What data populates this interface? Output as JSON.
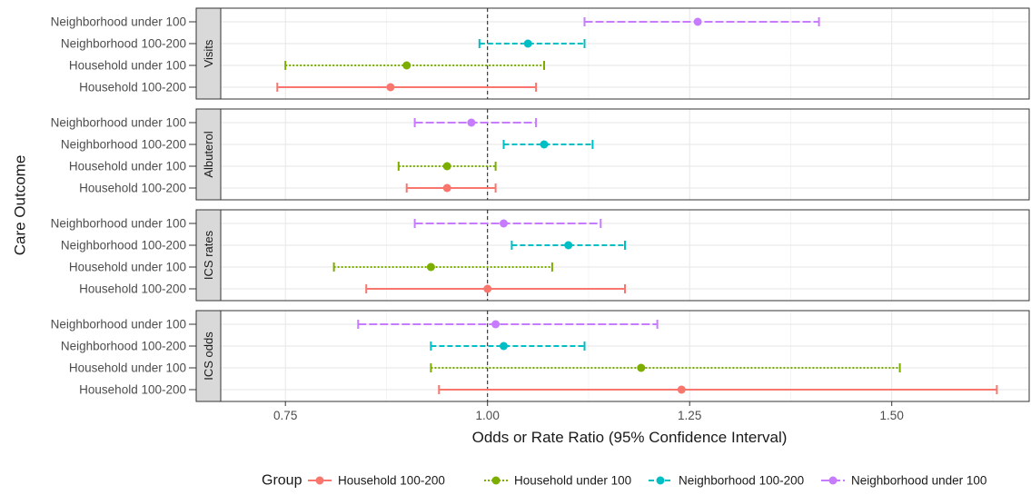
{
  "chart_data": {
    "type": "forest",
    "ylabel": "Care Outcome",
    "xlabel": "Odds or Rate Ratio (95% Confidence Interval)",
    "xlim": [
      0.67,
      1.67
    ],
    "x_ticks": [
      0.75,
      1.0,
      1.25,
      1.5
    ],
    "x_tick_labels": [
      "0.75",
      "1.00",
      "1.25",
      "1.50"
    ],
    "reference_line": 1.0,
    "grid": true,
    "legend_position": "bottom",
    "legend_title": "Group",
    "groups": [
      {
        "name": "Neighborhood under 100",
        "color": "#C77CFF",
        "dash": "long-dash"
      },
      {
        "name": "Neighborhood 100-200",
        "color": "#00BFC4",
        "dash": "dash"
      },
      {
        "name": "Household under 100",
        "color": "#7CAE00",
        "dash": "dot"
      },
      {
        "name": "Household 100-200",
        "color": "#F8766D",
        "dash": "solid"
      }
    ],
    "legend_order": [
      "Household 100-200",
      "Household under 100",
      "Neighborhood 100-200",
      "Neighborhood under 100"
    ],
    "panels": [
      {
        "facet": "Visits",
        "rows": [
          {
            "label": "Neighborhood under 100",
            "estimate": 1.26,
            "low": 1.12,
            "high": 1.41
          },
          {
            "label": "Neighborhood 100-200",
            "estimate": 1.05,
            "low": 0.99,
            "high": 1.12
          },
          {
            "label": "Household under 100",
            "estimate": 0.9,
            "low": 0.75,
            "high": 1.07
          },
          {
            "label": "Household 100-200",
            "estimate": 0.88,
            "low": 0.74,
            "high": 1.06
          }
        ]
      },
      {
        "facet": "Albuterol",
        "rows": [
          {
            "label": "Neighborhood under 100",
            "estimate": 0.98,
            "low": 0.91,
            "high": 1.06
          },
          {
            "label": "Neighborhood 100-200",
            "estimate": 1.07,
            "low": 1.02,
            "high": 1.13
          },
          {
            "label": "Household under 100",
            "estimate": 0.95,
            "low": 0.89,
            "high": 1.01
          },
          {
            "label": "Household 100-200",
            "estimate": 0.95,
            "low": 0.9,
            "high": 1.01
          }
        ]
      },
      {
        "facet": "ICS rates",
        "rows": [
          {
            "label": "Neighborhood under 100",
            "estimate": 1.02,
            "low": 0.91,
            "high": 1.14
          },
          {
            "label": "Neighborhood 100-200",
            "estimate": 1.1,
            "low": 1.03,
            "high": 1.17
          },
          {
            "label": "Household under 100",
            "estimate": 0.93,
            "low": 0.81,
            "high": 1.08
          },
          {
            "label": "Household 100-200",
            "estimate": 1.0,
            "low": 0.85,
            "high": 1.17
          }
        ]
      },
      {
        "facet": "ICS odds",
        "rows": [
          {
            "label": "Neighborhood under 100",
            "estimate": 1.01,
            "low": 0.84,
            "high": 1.21
          },
          {
            "label": "Neighborhood 100-200",
            "estimate": 1.02,
            "low": 0.93,
            "high": 1.12
          },
          {
            "label": "Household under 100",
            "estimate": 1.19,
            "low": 0.93,
            "high": 1.51
          },
          {
            "label": "Household 100-200",
            "estimate": 1.24,
            "low": 0.94,
            "high": 1.63
          }
        ]
      }
    ]
  }
}
